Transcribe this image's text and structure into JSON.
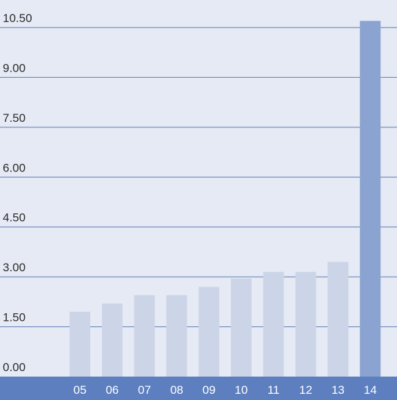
{
  "chart_data": {
    "type": "bar",
    "title": "",
    "xlabel": "",
    "ylabel": "",
    "categories": [
      "05",
      "06",
      "07",
      "08",
      "09",
      "10",
      "11",
      "12",
      "13",
      "14"
    ],
    "values": [
      1.95,
      2.2,
      2.45,
      2.45,
      2.7,
      2.95,
      3.15,
      3.15,
      3.45,
      10.7
    ],
    "ylim": [
      0,
      10.5
    ],
    "y_ticks": [
      "0.00",
      "1.50",
      "3.00",
      "4.50",
      "6.00",
      "7.50",
      "9.00",
      "10.50"
    ],
    "grid": true,
    "colors": {
      "background": "#e5eaf4",
      "bar": "#ccd5e8",
      "highlight_bar": "#8aa3d0",
      "gridline": "#5a78b4",
      "axis_band": "#5d7fc0",
      "tick_text": "#2a2a2a",
      "category_text": "#ffffff"
    },
    "highlight_category": "14"
  }
}
